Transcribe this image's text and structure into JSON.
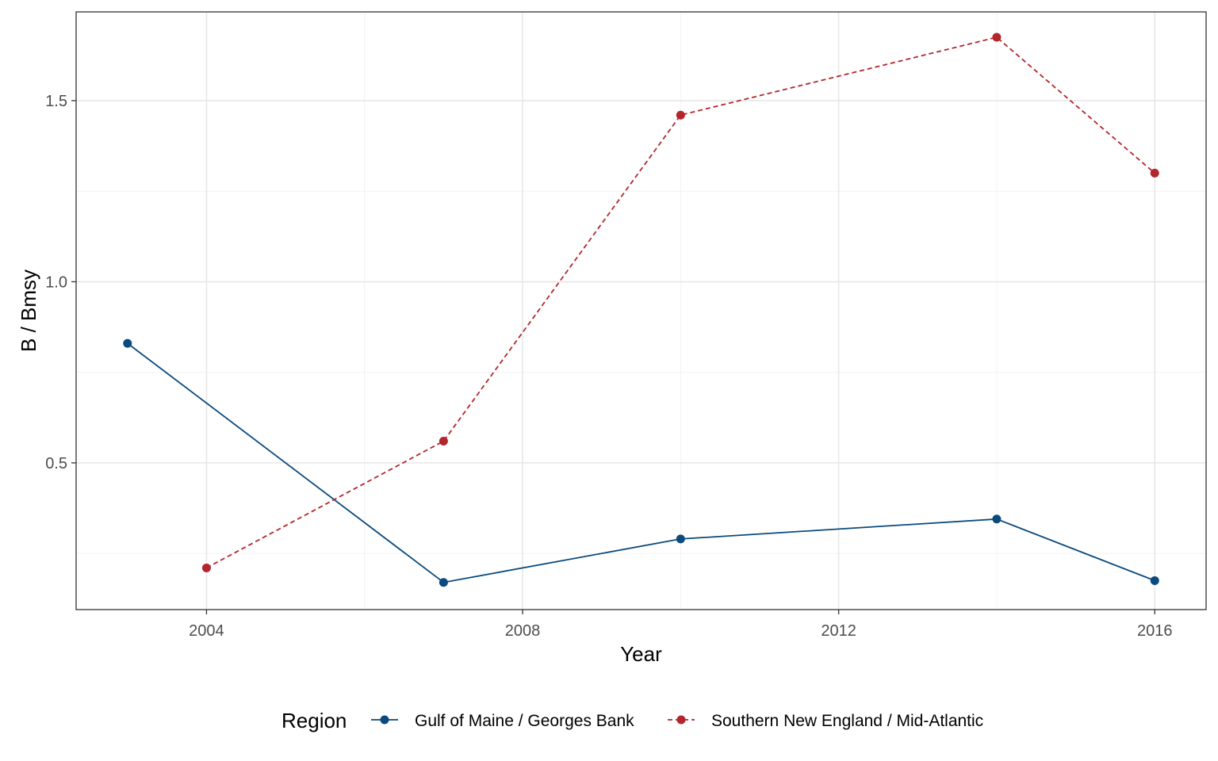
{
  "chart_data": {
    "type": "line",
    "xlabel": "Year",
    "ylabel": "B / Bmsy",
    "xlim": [
      2002.35,
      2016.65
    ],
    "ylim": [
      0.095,
      1.745
    ],
    "x_ticks": [
      2004,
      2008,
      2012,
      2016
    ],
    "x_tick_labels": [
      "2004",
      "2008",
      "2012",
      "2016"
    ],
    "y_ticks": [
      0.5,
      1.0,
      1.5
    ],
    "y_tick_labels": [
      "0.5",
      "1.0",
      "1.5"
    ],
    "y_minor_ticks": [
      0.25,
      0.75,
      1.25
    ],
    "x_minor_ticks": [
      2006,
      2010,
      2014
    ],
    "grid": true,
    "legend": {
      "title": "Region",
      "position": "bottom"
    },
    "series": [
      {
        "name": "Gulf of Maine / Georges Bank",
        "color": "#0b4a7d",
        "line_style": "solid",
        "x": [
          2003,
          2007,
          2010,
          2014,
          2016
        ],
        "y": [
          0.83,
          0.17,
          0.29,
          0.345,
          0.175
        ]
      },
      {
        "name": "Southern New England / Mid-Atlantic",
        "color": "#b2262d",
        "line_style": "dashed",
        "x": [
          2004,
          2007,
          2010,
          2014,
          2016
        ],
        "y": [
          0.21,
          0.56,
          1.46,
          1.675,
          1.3
        ]
      }
    ]
  }
}
